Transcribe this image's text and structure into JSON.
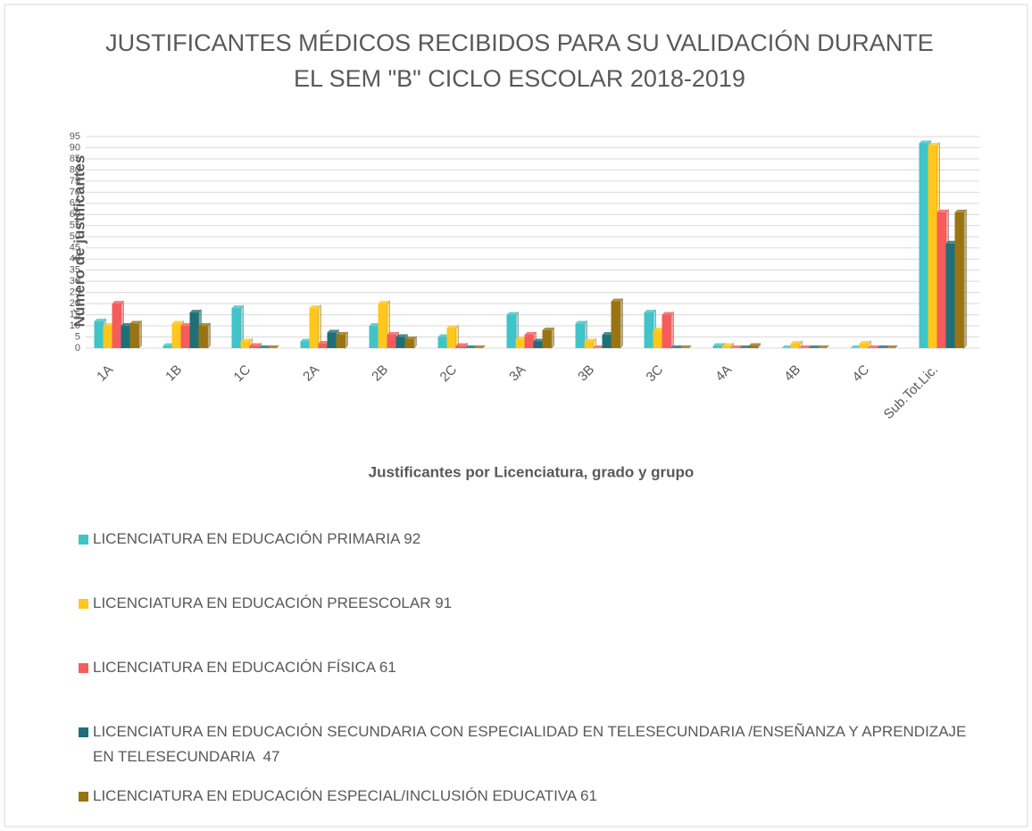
{
  "chart_data": {
    "type": "bar",
    "title": [
      "JUSTIFICANTES MÉDICOS RECIBIDOS PARA SU VALIDACIÓN DURANTE",
      "EL SEM \"B\" CICLO ESCOLAR 2018-2019"
    ],
    "x_label": "Justificantes por Licenciatura, grado y grupo",
    "y_label": "Número de justificantes",
    "categories": [
      "1A",
      "1B",
      "1C",
      "2A",
      "2B",
      "2C",
      "3A",
      "3B",
      "3C",
      "4A",
      "4B",
      "4C",
      "Sub.Tot.Lic."
    ],
    "series": [
      {
        "name": "LICENCIATURA EN EDUCACIÓN PRIMARIA 92",
        "color": "#3fc4c8",
        "values": [
          12,
          1,
          18,
          3,
          10,
          5,
          15,
          11,
          16,
          1,
          0,
          0,
          92
        ]
      },
      {
        "name": "LICENCIATURA EN EDUCACIÓN PREESCOLAR 91",
        "color": "#ffc71a",
        "values": [
          10,
          11,
          3,
          18,
          20,
          9,
          4,
          3,
          8,
          1,
          2,
          2,
          91
        ]
      },
      {
        "name": "LICENCIATURA EN EDUCACIÓN FÍSICA 61",
        "color": "#f75b5b",
        "values": [
          20,
          10,
          1,
          2,
          6,
          1,
          6,
          0,
          15,
          0,
          0,
          0,
          61
        ]
      },
      {
        "name": "LICENCIATURA EN EDUCACIÓN SECUNDARIA CON ESPECIALIDAD EN TELESECUNDARIA /ENSEÑANZA Y APRENDIZAJE EN TELESECUNDARIA  47",
        "color": "#1e6f78",
        "values": [
          10,
          16,
          0,
          7,
          5,
          0,
          3,
          6,
          0,
          0,
          0,
          0,
          47
        ]
      },
      {
        "name": "LICENCIATURA EN EDUCACIÓN ESPECIAL/INCLUSIÓN EDUCATIVA 61",
        "color": "#9a7410",
        "values": [
          11,
          10,
          0,
          6,
          4,
          0,
          8,
          21,
          0,
          1,
          0,
          0,
          61
        ]
      }
    ],
    "ylim": [
      0,
      95
    ],
    "yticks": [
      0,
      5,
      10,
      15,
      20,
      25,
      30,
      35,
      40,
      45,
      50,
      55,
      60,
      65,
      70,
      75,
      80,
      85,
      90,
      95
    ],
    "grid": true
  }
}
